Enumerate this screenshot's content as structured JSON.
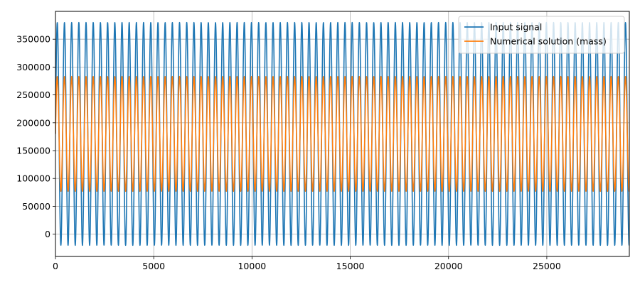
{
  "chart_data": {
    "type": "line",
    "title": "",
    "xlabel": "",
    "ylabel": "",
    "xlim": [
      0,
      29200
    ],
    "ylim": [
      -40000,
      400000
    ],
    "x_ticks": [
      0,
      5000,
      10000,
      15000,
      20000,
      25000
    ],
    "x_tick_labels": [
      "0",
      "5000",
      "10000",
      "15000",
      "20000",
      "25000"
    ],
    "y_ticks": [
      0,
      50000,
      100000,
      150000,
      200000,
      250000,
      300000,
      350000
    ],
    "y_tick_labels": [
      "0",
      "50000",
      "100000",
      "150000",
      "200000",
      "250000",
      "300000",
      "350000"
    ],
    "grid": true,
    "legend_position": "upper right",
    "series": [
      {
        "name": "Input signal",
        "color": "#1f77b4",
        "form": "sinusoid",
        "center": 180000,
        "amplitude": 200000,
        "max": 380000,
        "min": -20000,
        "period": 366,
        "phase_at_x0": "rising",
        "x_start": 0,
        "x_end": 29200
      },
      {
        "name": "Numerical solution (mass)",
        "color": "#ff7f0e",
        "form": "sinusoid",
        "center": 180000,
        "amplitude": 103000,
        "max": 283000,
        "min": 77000,
        "period": 366,
        "phase_at_x0": "rising",
        "x_start": 0,
        "x_end": 29200
      }
    ]
  }
}
